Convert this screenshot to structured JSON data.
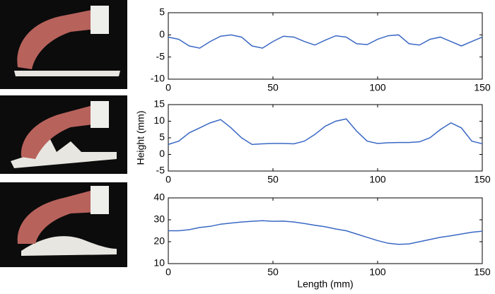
{
  "chart_data": [
    {
      "type": "line",
      "x": [
        0,
        5,
        10,
        15,
        20,
        25,
        30,
        35,
        40,
        45,
        50,
        55,
        60,
        65,
        70,
        75,
        80,
        85,
        90,
        95,
        100,
        105,
        110,
        115,
        120,
        125,
        130,
        135,
        140,
        145,
        150
      ],
      "series": [
        {
          "color": "#3a68c4",
          "values": [
            -0.5,
            -1,
            -2.5,
            -3,
            -1.5,
            -0.3,
            0,
            -0.5,
            -2.5,
            -3,
            -1.5,
            -0.3,
            -0.5,
            -1.5,
            -2.3,
            -1.2,
            -0.2,
            -0.5,
            -2,
            -2.2,
            -1,
            -0.2,
            0,
            -2,
            -2.3,
            -1,
            -0.5,
            -1.5,
            -2.5,
            -1.5,
            -0.5
          ]
        }
      ],
      "xlim": [
        0,
        150
      ],
      "xticks": [
        0,
        50,
        100,
        150
      ],
      "ylim": [
        -10,
        5
      ],
      "yticks": [
        -10,
        -5,
        0,
        5
      ]
    },
    {
      "type": "line",
      "y_label": "Height (mm)",
      "x": [
        0,
        5,
        10,
        15,
        20,
        25,
        30,
        35,
        40,
        45,
        50,
        55,
        60,
        65,
        70,
        75,
        80,
        85,
        90,
        95,
        100,
        105,
        110,
        115,
        120,
        125,
        130,
        135,
        140,
        145,
        150
      ],
      "series": [
        {
          "color": "#3a68c4",
          "values": [
            3,
            4,
            6.5,
            8,
            9.5,
            10.5,
            8,
            5,
            3,
            3.2,
            3.3,
            3.3,
            3.2,
            4,
            6,
            8.5,
            10,
            10.7,
            7,
            4,
            3.3,
            3.5,
            3.6,
            3.6,
            3.8,
            5,
            7.5,
            9.5,
            8,
            4,
            3.2
          ]
        }
      ],
      "xlim": [
        0,
        150
      ],
      "xticks": [
        0,
        50,
        100,
        150
      ],
      "ylim": [
        -5,
        15
      ],
      "yticks": [
        -5,
        0,
        5,
        10,
        15
      ]
    },
    {
      "type": "line",
      "x_label": "Length (mm)",
      "x": [
        0,
        5,
        10,
        15,
        20,
        25,
        30,
        35,
        40,
        45,
        50,
        55,
        60,
        65,
        70,
        75,
        80,
        85,
        90,
        95,
        100,
        105,
        110,
        115,
        120,
        125,
        130,
        135,
        140,
        145,
        150
      ],
      "series": [
        {
          "color": "#3a68c4",
          "values": [
            25,
            25,
            25.5,
            26.5,
            27,
            28,
            28.5,
            29,
            29.3,
            29.6,
            29.3,
            29.4,
            29,
            28.3,
            27.5,
            26.8,
            25.8,
            25,
            23.5,
            22,
            20.5,
            19.3,
            18.8,
            19,
            20,
            21,
            22,
            22.7,
            23.5,
            24.3,
            24.8
          ]
        }
      ],
      "xlim": [
        0,
        150
      ],
      "xticks": [
        0,
        50,
        100,
        150
      ],
      "ylim": [
        10,
        40
      ],
      "yticks": [
        10,
        20,
        30,
        40
      ]
    }
  ]
}
